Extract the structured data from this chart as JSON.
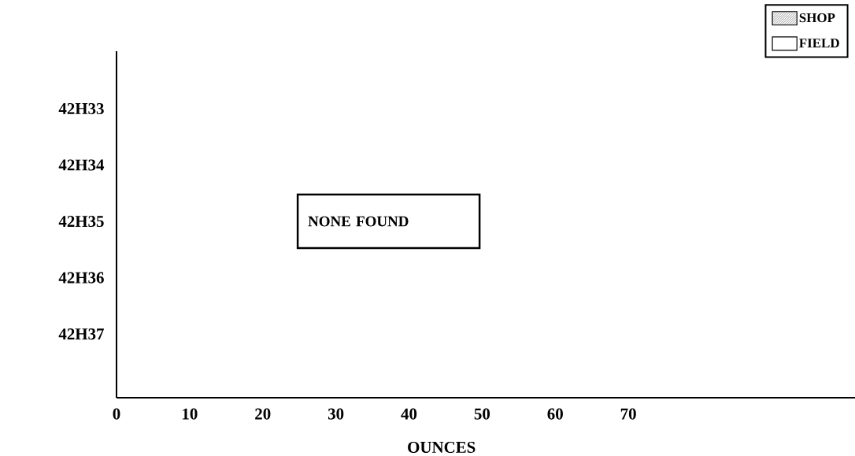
{
  "chart_data": {
    "type": "bar",
    "orientation": "horizontal",
    "categories": [
      "42H33",
      "42H34",
      "42H35",
      "42H36",
      "42H37"
    ],
    "series": [
      {
        "name": "SHOP",
        "color": "#000000",
        "values": [
          null,
          null,
          null,
          null,
          null
        ]
      },
      {
        "name": "FIELD",
        "color": "#ffffff",
        "values": [
          null,
          null,
          null,
          null,
          null
        ]
      }
    ],
    "xlabel": "OUNCES",
    "xlim": [
      0,
      101
    ],
    "xticks": [
      0,
      10,
      20,
      30,
      40,
      50,
      60,
      70
    ],
    "annotations": [
      "NONE FOUND"
    ],
    "legend": "top right",
    "grid": false
  }
}
